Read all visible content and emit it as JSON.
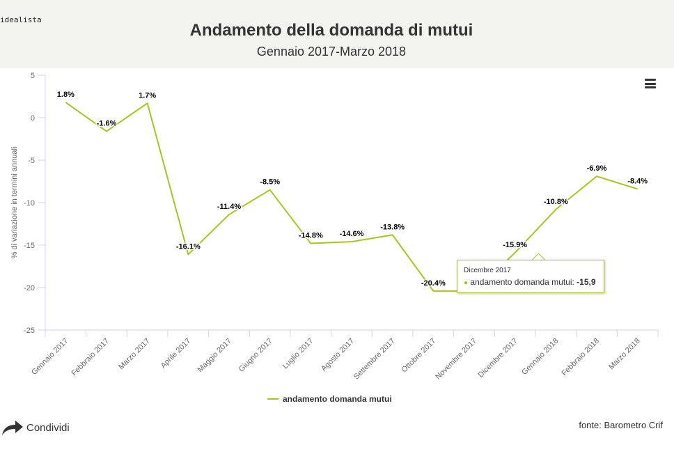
{
  "brand": "idealista",
  "header": {
    "title": "Andamento della domanda di mutui",
    "subtitle": "Gennaio 2017-Marzo 2018"
  },
  "chart_data": {
    "type": "line",
    "categories": [
      "Gennaio 2017",
      "Febbraio 2017",
      "Marzo 2017",
      "Aprile 2017",
      "Maggio 2017",
      "Giugno 2017",
      "Luglio 2017",
      "Agosto 2017",
      "Settembre 2017",
      "Ottobre 2017",
      "Novembre 2017",
      "Dicembre 2017",
      "Gennaio 2018",
      "Febbraio 2018",
      "Marzo 2018"
    ],
    "series": [
      {
        "name": "andamento domanda mutui",
        "values": [
          1.8,
          -1.6,
          1.7,
          -16.1,
          -11.4,
          -8.5,
          -14.8,
          -14.6,
          -13.8,
          -20.4,
          -20.4,
          -15.9,
          -10.8,
          -6.9,
          -8.4
        ]
      }
    ],
    "data_labels": [
      "1.8%",
      "-1.6%",
      "1.7%",
      "-16.1%",
      "-11.4%",
      "-8.5%",
      "-14.8%",
      "-14.6%",
      "-13.8%",
      "-20.4%",
      "",
      "-15.9%",
      "-10.8%",
      "-6.9%",
      "-8.4%"
    ],
    "ylabel": "% di variazione in termini annuali",
    "ylim": [
      -25,
      5
    ],
    "yticks": [
      "5",
      "0",
      "-5",
      "-10",
      "-15",
      "-20",
      "-25"
    ],
    "grid": false,
    "legend": "bottom",
    "color": "#a5c61b"
  },
  "tooltip": {
    "header": "Dicembre 2017",
    "series_name": "andamento domanda mutui:",
    "value": "-15,9"
  },
  "footer": {
    "share": "Condividi",
    "source": "fonte: Barometro Crif"
  },
  "icons": {
    "menu": "hamburger-menu-icon",
    "share": "share-arrow-icon"
  }
}
